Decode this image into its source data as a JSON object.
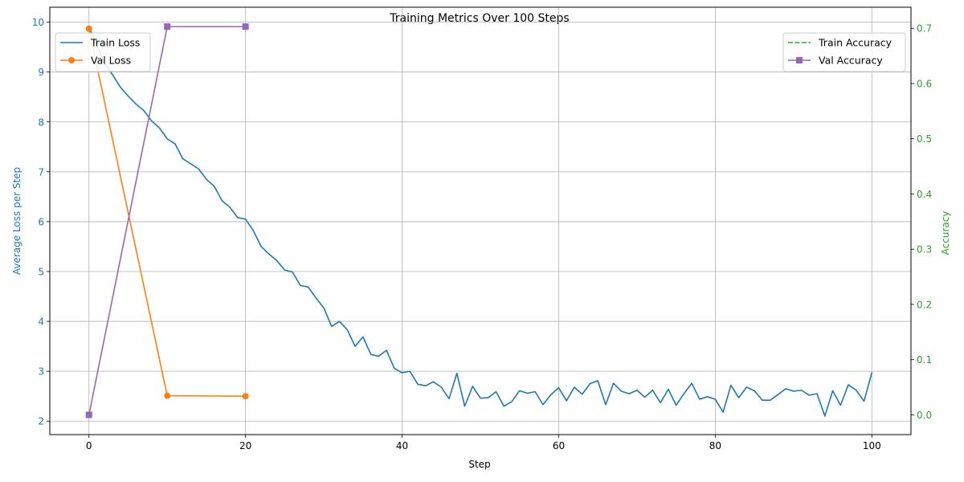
{
  "chart_data": {
    "type": "line",
    "title": "Training Metrics Over 100 Steps",
    "xlabel": "Step",
    "ylabel_left": "Average Loss per Step",
    "ylabel_right": "Accuracy",
    "xlim": [
      -5,
      105
    ],
    "ylim_left": [
      1.73,
      10.3
    ],
    "ylim_right": [
      -0.0357,
      0.7381
    ],
    "xticks": [
      0,
      20,
      40,
      60,
      80,
      100
    ],
    "yticks_left": [
      2,
      3,
      4,
      5,
      6,
      7,
      8,
      9,
      10
    ],
    "yticks_right": [
      0.0,
      0.1,
      0.2,
      0.3,
      0.4,
      0.5,
      0.6,
      0.7
    ],
    "ytick_labels_right": [
      "0.0",
      "0.1",
      "0.2",
      "0.3",
      "0.4",
      "0.5",
      "0.6",
      "0.7"
    ],
    "grid": true,
    "colors": {
      "left_axis": "#1f77b4",
      "right_axis": "#2ca02c",
      "train_loss": "#1f77b4",
      "val_loss": "#ff7f0e",
      "train_accuracy": "#2ca02c",
      "val_accuracy": "#9467bd"
    },
    "legend_left": {
      "placement": "upper-left",
      "entries": [
        "Train Loss",
        "Val Loss"
      ]
    },
    "legend_right": {
      "placement": "upper-right",
      "entries": [
        "Train Accuracy",
        "Val Accuracy"
      ]
    },
    "series": [
      {
        "name": "Train Loss",
        "axis": "left",
        "style": "solid",
        "marker": "none",
        "x": [
          0,
          1,
          2,
          3,
          4,
          5,
          6,
          7,
          8,
          9,
          10,
          11,
          12,
          13,
          14,
          15,
          16,
          17,
          18,
          19,
          20,
          21,
          22,
          23,
          24,
          25,
          26,
          27,
          28,
          29,
          30,
          31,
          32,
          33,
          34,
          35,
          36,
          37,
          38,
          39,
          40,
          41,
          42,
          43,
          44,
          45,
          46,
          47,
          48,
          49,
          50,
          51,
          52,
          53,
          54,
          55,
          56,
          57,
          58,
          59,
          60,
          61,
          62,
          63,
          64,
          65,
          66,
          67,
          68,
          69,
          70,
          71,
          72,
          73,
          74,
          75,
          76,
          77,
          78,
          79,
          80,
          81,
          82,
          83,
          84,
          85,
          86,
          87,
          88,
          89,
          90,
          91,
          92,
          93,
          94,
          95,
          96,
          97,
          98,
          99,
          100
        ],
        "y": [
          9.9,
          9.55,
          9.17,
          8.95,
          8.7,
          8.52,
          8.36,
          8.23,
          8.02,
          7.88,
          7.66,
          7.56,
          7.26,
          7.16,
          7.06,
          6.85,
          6.71,
          6.42,
          6.29,
          6.08,
          6.05,
          5.82,
          5.5,
          5.35,
          5.22,
          5.03,
          4.99,
          4.72,
          4.69,
          4.47,
          4.27,
          3.9,
          4.0,
          3.83,
          3.5,
          3.69,
          3.34,
          3.3,
          3.42,
          3.06,
          2.97,
          3.0,
          2.74,
          2.71,
          2.79,
          2.68,
          2.45,
          2.96,
          2.3,
          2.7,
          2.46,
          2.47,
          2.59,
          2.3,
          2.39,
          2.61,
          2.56,
          2.59,
          2.33,
          2.53,
          2.67,
          2.41,
          2.68,
          2.54,
          2.75,
          2.81,
          2.33,
          2.76,
          2.6,
          2.55,
          2.62,
          2.48,
          2.62,
          2.37,
          2.64,
          2.32,
          2.55,
          2.76,
          2.44,
          2.49,
          2.44,
          2.18,
          2.72,
          2.47,
          2.68,
          2.61,
          2.42,
          2.42,
          2.53,
          2.65,
          2.6,
          2.62,
          2.52,
          2.55,
          2.1,
          2.61,
          2.32,
          2.73,
          2.62,
          2.4,
          2.97
        ]
      },
      {
        "name": "Val Loss",
        "axis": "left",
        "style": "solid",
        "marker": "circle",
        "x": [
          0,
          10,
          20
        ],
        "y": [
          9.87,
          2.51,
          2.5
        ]
      },
      {
        "name": "Train Accuracy",
        "axis": "right",
        "style": "dashed",
        "marker": "none",
        "x": [],
        "y": []
      },
      {
        "name": "Val Accuracy",
        "axis": "right",
        "style": "solid",
        "marker": "square",
        "x": [
          0,
          10,
          20
        ],
        "y": [
          0.0,
          0.703,
          0.703
        ]
      }
    ]
  }
}
